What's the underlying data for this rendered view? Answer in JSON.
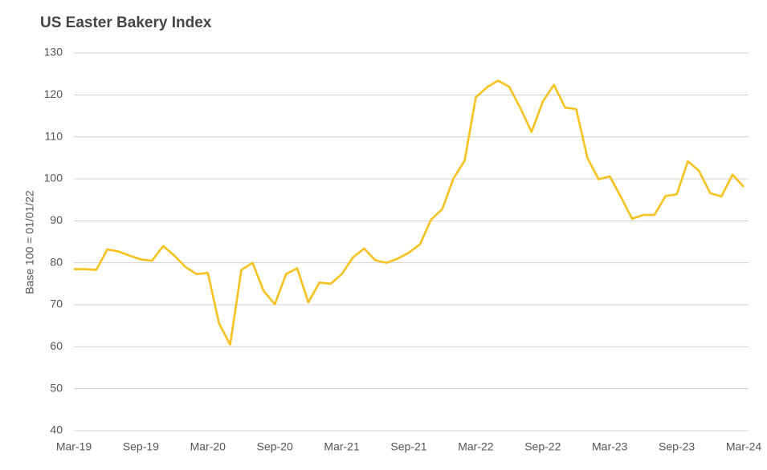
{
  "chart_data": {
    "type": "line",
    "title": "US Easter Bakery Index",
    "y_label": "Base 100 = 01/01/22",
    "categories": [
      "Mar-19",
      null,
      null,
      null,
      null,
      null,
      "Sep-19",
      null,
      null,
      null,
      null,
      null,
      "Mar-20",
      null,
      null,
      null,
      null,
      null,
      "Sep-20",
      null,
      null,
      null,
      null,
      null,
      "Mar-21",
      null,
      null,
      null,
      null,
      null,
      "Sep-21",
      null,
      null,
      null,
      null,
      null,
      "Mar-22",
      null,
      null,
      null,
      null,
      null,
      "Sep-22",
      null,
      null,
      null,
      null,
      null,
      "Mar-23",
      null,
      null,
      null,
      null,
      null,
      "Sep-23",
      null,
      null,
      null,
      null,
      null,
      "Mar-24"
    ],
    "values": [
      78.5,
      78.5,
      78.3,
      83.2,
      82.7,
      81.7,
      80.8,
      80.5,
      84.0,
      81.7,
      79.0,
      77.3,
      77.6,
      65.6,
      60.5,
      78.3,
      80.0,
      73.3,
      70.1,
      77.3,
      78.7,
      70.6,
      75.3,
      75.0,
      77.3,
      81.3,
      83.4,
      80.6,
      80.0,
      81.0,
      82.4,
      84.4,
      90.3,
      92.8,
      100.1,
      104.3,
      119.4,
      121.8,
      123.4,
      121.9,
      116.8,
      111.2,
      118.4,
      122.4,
      117.0,
      116.6,
      105.0,
      99.9,
      100.6,
      95.7,
      90.5,
      91.4,
      91.4,
      95.9,
      96.3,
      104.2,
      101.9,
      96.6,
      95.8,
      101.0,
      98.1
    ],
    "color": "#f5c11c",
    "ylim": [
      40,
      130
    ],
    "yticks": [
      40,
      50,
      60,
      70,
      80,
      90,
      100,
      110,
      120,
      130
    ],
    "grid": true
  }
}
